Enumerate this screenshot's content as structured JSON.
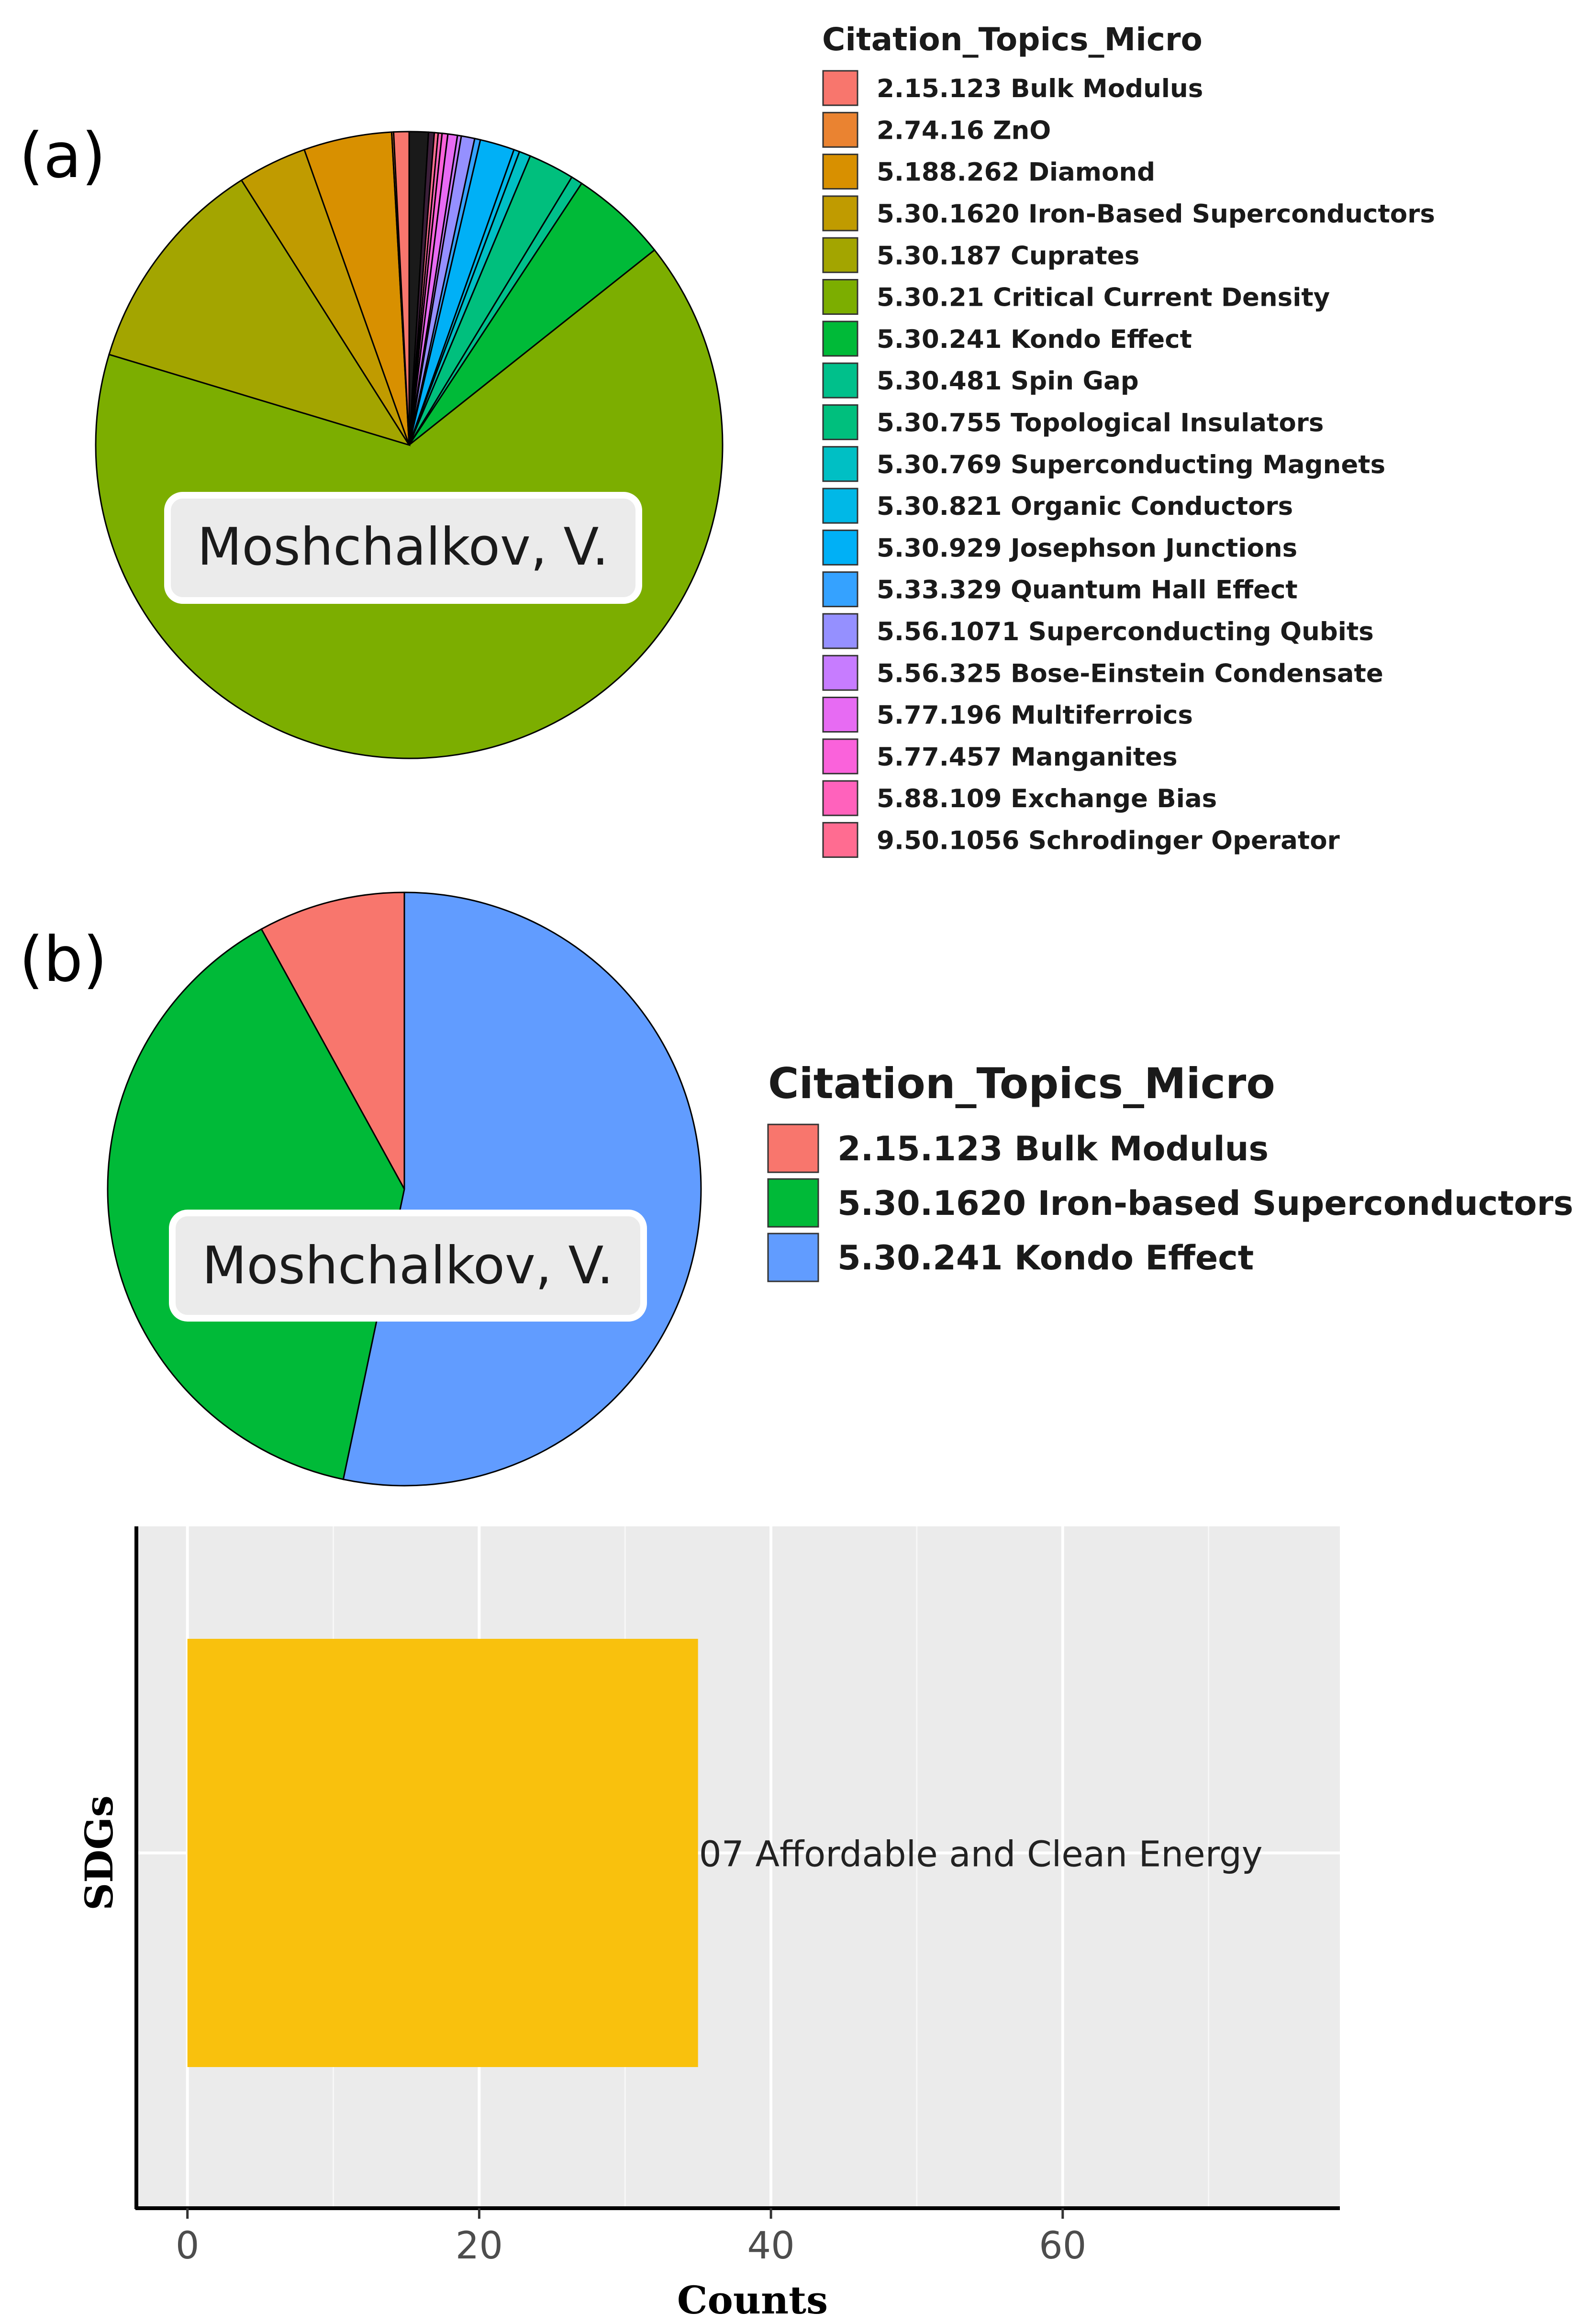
{
  "panel_a": {
    "label": "(a)",
    "name_label": "Moshchalkov, V.",
    "legend_title": "Citation_Topics_Micro"
  },
  "panel_b": {
    "label": "(b)",
    "name_label": "Moshchalkov, V.",
    "legend_title": "Citation_Topics_Micro"
  },
  "chart_data": [
    {
      "type": "pie",
      "title": "",
      "legend_title": "Citation_Topics_Micro",
      "legend_position": "right",
      "unit": "percent",
      "slices": [
        {
          "label": "2.15.123 Bulk Modulus",
          "value": 0.8,
          "color": "#F8766D"
        },
        {
          "label": "2.74.16 ZnO",
          "value": 0.1,
          "color": "#EA8331"
        },
        {
          "label": "5.188.262 Diamond",
          "value": 4.6,
          "color": "#D89000"
        },
        {
          "label": "5.30.1620 Iron-Based Superconductors",
          "value": 3.6,
          "color": "#C09B00"
        },
        {
          "label": "5.30.187 Cuprates",
          "value": 11.5,
          "color": "#A3A500"
        },
        {
          "label": "5.30.21 Critical Current Density",
          "value": 66.2,
          "color": "#7CAE00"
        },
        {
          "label": "5.30.241 Kondo Effect",
          "value": 5.1,
          "color": "#00BA38"
        },
        {
          "label": "5.30.481 Spin Gap",
          "value": 0.6,
          "color": "#00C08B"
        },
        {
          "label": "5.30.755 Topological Insulators",
          "value": 2.4,
          "color": "#00BF7D"
        },
        {
          "label": "5.30.769 Superconducting Magnets",
          "value": 0.6,
          "color": "#00BFC4"
        },
        {
          "label": "5.30.821 Organic Conductors",
          "value": 0.3,
          "color": "#00B8E7"
        },
        {
          "label": "5.30.929 Josephson Junctions",
          "value": 1.8,
          "color": "#00B0F6"
        },
        {
          "label": "5.33.329 Quantum Hall Effect",
          "value": 0.3,
          "color": "#35A2FF"
        },
        {
          "label": "5.56.1071 Superconducting Qubits",
          "value": 0.7,
          "color": "#9590FF"
        },
        {
          "label": "5.56.325 Bose-Einstein Condensate",
          "value": 0.2,
          "color": "#C77CFF"
        },
        {
          "label": "5.77.196 Multiferroics",
          "value": 0.5,
          "color": "#E76BF3"
        },
        {
          "label": "5.77.457 Manganites",
          "value": 0.3,
          "color": "#FA62DB"
        },
        {
          "label": "5.88.109 Exchange Bias",
          "value": 0.2,
          "color": "#FF62BC"
        },
        {
          "label": "9.50.1056 Schrodinger Operator",
          "value": 0.2,
          "color": "#FF6C91"
        }
      ],
      "dark_slices": [
        {
          "value": 1.0,
          "color": "#1a1a1a"
        },
        {
          "value": 0.3,
          "color": "#3c1f3a"
        }
      ]
    },
    {
      "type": "pie",
      "title": "",
      "legend_title": "Citation_Topics_Micro",
      "legend_position": "right",
      "unit": "percent",
      "slices": [
        {
          "label": "2.15.123 Bulk  Modulus",
          "value": 8.0,
          "color": "#F8766D"
        },
        {
          "label": "5.30.1620 Iron-based   Superconductors",
          "value": 38.7,
          "color": "#00BA38"
        },
        {
          "label": "5.30.241 Kondo Effect",
          "value": 53.3,
          "color": "#619CFF"
        }
      ]
    },
    {
      "type": "bar",
      "orientation": "horizontal",
      "categories": [
        "07 Affordable and Clean Energy"
      ],
      "values": [
        35
      ],
      "bar_color": "#F9C10D",
      "xlabel": "Counts",
      "ylabel": "SDGs",
      "xlim": [
        -3.5,
        79
      ],
      "xticks": [
        0,
        20,
        40,
        60
      ],
      "grid": true,
      "background": "#EBEBEB"
    }
  ]
}
